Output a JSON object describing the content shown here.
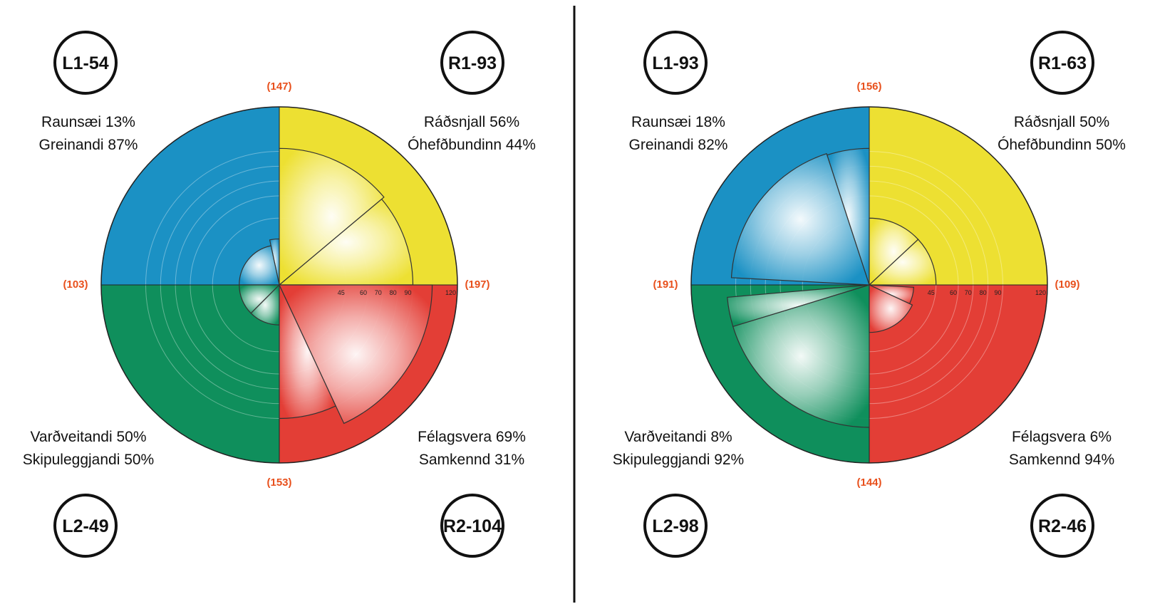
{
  "colors": {
    "blue": "#1b91c4",
    "yellow": "#ede032",
    "red": "#e33e36",
    "green": "#0f8f5c",
    "total_text": "#e8501c",
    "ink": "#111111"
  },
  "chart_data": [
    {
      "type": "polar-area",
      "scale": {
        "ticks": [
          45,
          60,
          70,
          80,
          90,
          120
        ],
        "max": 120
      },
      "quadrants": {
        "top_left": {
          "color": "blue",
          "badge": "L1-54",
          "lines": [
            "Raunsæi 13%",
            "Greinandi 87%"
          ],
          "total": "(103)"
        },
        "top_right": {
          "color": "yellow",
          "badge": "R1-93",
          "lines": [
            "Ráðsnjall 56%",
            "Óhefðbundinn 44%"
          ],
          "total": "(197)"
        },
        "bottom_left": {
          "color": "green",
          "badge": "L2-49",
          "lines": [
            "Varðveitandi 50%",
            "Skipuleggjandi 50%"
          ],
          "total": "(153)"
        },
        "bottom_right": {
          "color": "red",
          "badge": "R2-104",
          "lines": [
            "Félagsvera 69%",
            "Samkennd 31%"
          ],
          "total": "(147)"
        }
      },
      "totals_positions": {
        "top": "(147)",
        "left": "(103)",
        "right": "(197)",
        "bottom": "(153)"
      },
      "wedges": [
        {
          "quadrant": "top_left",
          "value": 31,
          "start_deg": 90,
          "end_deg": 102
        },
        {
          "quadrant": "top_left",
          "value": 27,
          "start_deg": 102,
          "end_deg": 180
        },
        {
          "quadrant": "top_right",
          "value": 90,
          "start_deg": 0,
          "end_deg": 40
        },
        {
          "quadrant": "top_right",
          "value": 92,
          "start_deg": 40,
          "end_deg": 90
        },
        {
          "quadrant": "bottom_left",
          "value": 27,
          "start_deg": 180,
          "end_deg": 225
        },
        {
          "quadrant": "bottom_left",
          "value": 27,
          "start_deg": 225,
          "end_deg": 270
        },
        {
          "quadrant": "bottom_right",
          "value": 90,
          "start_deg": 270,
          "end_deg": 295
        },
        {
          "quadrant": "bottom_right",
          "value": 103,
          "start_deg": 295,
          "end_deg": 360
        }
      ]
    },
    {
      "type": "polar-area",
      "scale": {
        "ticks": [
          45,
          60,
          70,
          80,
          90,
          120
        ],
        "max": 120
      },
      "quadrants": {
        "top_left": {
          "color": "blue",
          "badge": "L1-93",
          "lines": [
            "Raunsæi 18%",
            "Greinandi 82%"
          ],
          "total": "(191)"
        },
        "top_right": {
          "color": "yellow",
          "badge": "R1-63",
          "lines": [
            "Ráðsnjall 50%",
            "Óhefðbundinn 50%"
          ],
          "total": "(109)"
        },
        "bottom_left": {
          "color": "green",
          "badge": "L2-98",
          "lines": [
            "Varðveitandi 8%",
            "Skipuleggjandi 92%"
          ],
          "total": "(144)"
        },
        "bottom_right": {
          "color": "red",
          "badge": "R2-46",
          "lines": [
            "Félagsvera 6%",
            "Samkennd 94%"
          ],
          "total": "(156)"
        }
      },
      "totals_positions": {
        "top": "(156)",
        "left": "(191)",
        "right": "(109)",
        "bottom": "(144)"
      },
      "wedges": [
        {
          "quadrant": "top_left",
          "value": 92,
          "start_deg": 90,
          "end_deg": 108
        },
        {
          "quadrant": "top_left",
          "value": 93,
          "start_deg": 108,
          "end_deg": 177
        },
        {
          "quadrant": "top_right",
          "value": 45,
          "start_deg": 0,
          "end_deg": 43
        },
        {
          "quadrant": "top_right",
          "value": 45,
          "start_deg": 43,
          "end_deg": 90
        },
        {
          "quadrant": "bottom_left",
          "value": 96,
          "start_deg": 185,
          "end_deg": 197
        },
        {
          "quadrant": "bottom_left",
          "value": 96,
          "start_deg": 197,
          "end_deg": 270
        },
        {
          "quadrant": "bottom_right",
          "value": 30,
          "start_deg": 335,
          "end_deg": 357
        },
        {
          "quadrant": "bottom_right",
          "value": 32,
          "start_deg": 270,
          "end_deg": 335
        }
      ]
    }
  ]
}
